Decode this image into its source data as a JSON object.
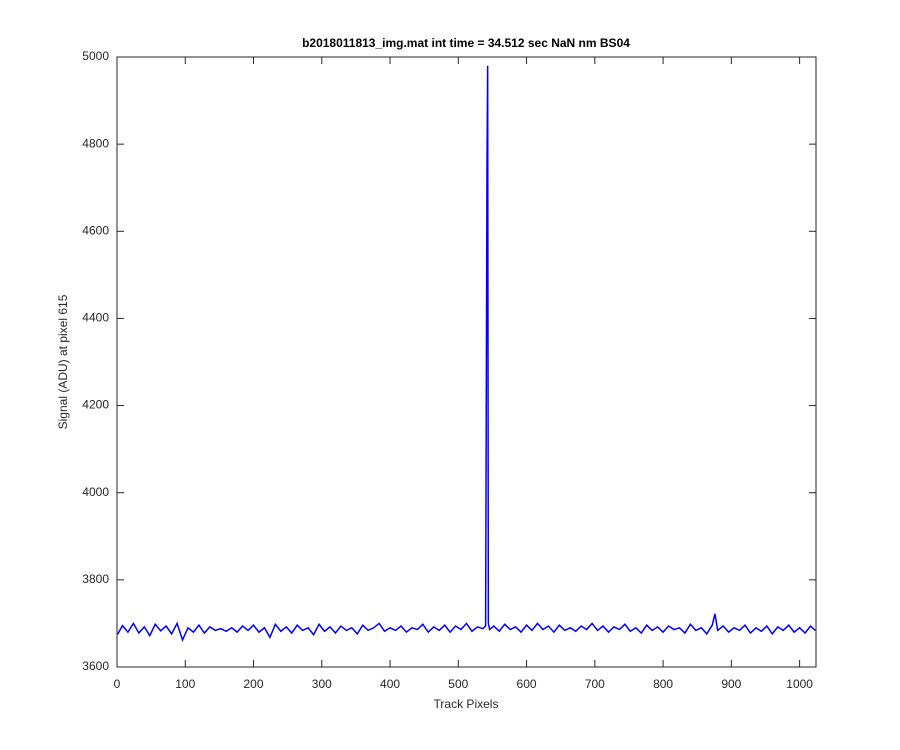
{
  "chart_data": {
    "type": "line",
    "title": "b2018011813_img.mat int time = 34.512 sec  NaN nm BS04",
    "xlabel": "Track Pixels",
    "ylabel": "Signal (ADU) at pixel 615",
    "color": "#0000ff",
    "x": [
      1,
      8,
      16,
      24,
      32,
      40,
      48,
      56,
      64,
      72,
      80,
      88,
      96,
      104,
      112,
      120,
      128,
      136,
      144,
      152,
      160,
      168,
      176,
      184,
      192,
      200,
      208,
      216,
      224,
      232,
      240,
      248,
      256,
      264,
      272,
      280,
      288,
      296,
      304,
      312,
      320,
      328,
      336,
      344,
      352,
      360,
      368,
      376,
      384,
      392,
      400,
      408,
      416,
      424,
      432,
      440,
      448,
      456,
      464,
      472,
      480,
      488,
      496,
      504,
      512,
      520,
      528,
      536,
      540,
      542,
      543,
      544,
      546,
      552,
      560,
      568,
      576,
      584,
      592,
      600,
      608,
      616,
      624,
      632,
      640,
      648,
      656,
      664,
      672,
      680,
      688,
      696,
      704,
      712,
      720,
      728,
      736,
      744,
      752,
      760,
      768,
      776,
      784,
      792,
      800,
      808,
      816,
      824,
      832,
      840,
      848,
      856,
      864,
      872,
      876,
      880,
      888,
      896,
      904,
      912,
      920,
      928,
      936,
      944,
      952,
      960,
      968,
      976,
      984,
      992,
      1000,
      1008,
      1016,
      1023
    ],
    "values": [
      3675,
      3695,
      3680,
      3700,
      3678,
      3692,
      3672,
      3698,
      3683,
      3694,
      3676,
      3700,
      3662,
      3690,
      3680,
      3696,
      3678,
      3692,
      3684,
      3688,
      3682,
      3690,
      3680,
      3694,
      3684,
      3696,
      3680,
      3690,
      3668,
      3698,
      3682,
      3692,
      3678,
      3696,
      3684,
      3690,
      3674,
      3698,
      3682,
      3692,
      3678,
      3694,
      3684,
      3690,
      3676,
      3696,
      3684,
      3690,
      3700,
      3682,
      3690,
      3684,
      3694,
      3680,
      3690,
      3686,
      3698,
      3680,
      3692,
      3684,
      3696,
      3680,
      3694,
      3686,
      3700,
      3682,
      3692,
      3688,
      3694,
      4750,
      4980,
      3700,
      3686,
      3694,
      3682,
      3698,
      3686,
      3692,
      3680,
      3696,
      3684,
      3700,
      3686,
      3694,
      3680,
      3696,
      3684,
      3690,
      3682,
      3694,
      3686,
      3700,
      3684,
      3694,
      3680,
      3692,
      3686,
      3698,
      3682,
      3690,
      3678,
      3696,
      3684,
      3692,
      3680,
      3694,
      3686,
      3690,
      3678,
      3698,
      3684,
      3690,
      3676,
      3696,
      3722,
      3684,
      3694,
      3680,
      3690,
      3684,
      3696,
      3678,
      3690,
      3682,
      3694,
      3676,
      3692,
      3684,
      3696,
      3680,
      3690,
      3678,
      3694,
      3684
    ],
    "xlim": [
      0,
      1024
    ],
    "ylim": [
      3600,
      5000
    ],
    "xticks": [
      0,
      100,
      200,
      300,
      400,
      500,
      600,
      700,
      800,
      900,
      1000
    ],
    "yticks": [
      3600,
      3800,
      4000,
      4200,
      4400,
      4600,
      4800,
      5000
    ]
  }
}
